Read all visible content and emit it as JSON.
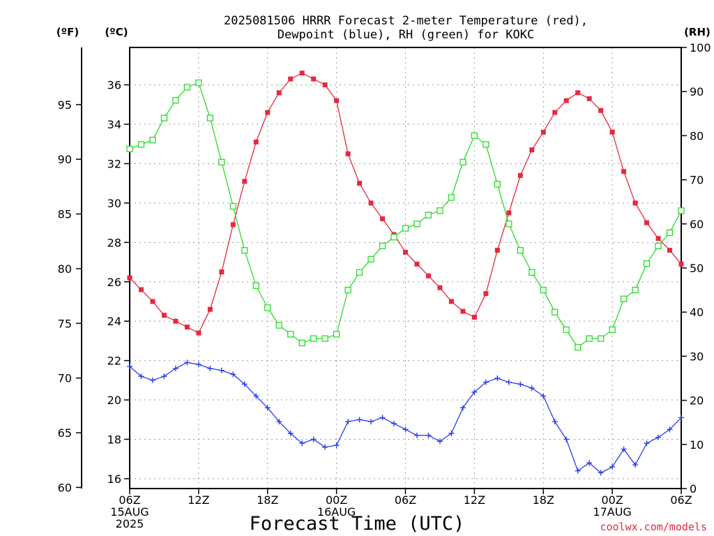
{
  "chart_data": {
    "type": "line",
    "title_lines": [
      "2025081506 HRRR Forecast 2-meter Temperature (red),",
      "Dewpoint (blue), RH (green) for KOKC"
    ],
    "xlabel": "Forecast Time (UTC)",
    "credit": "coolwx.com/models",
    "unit_labels": {
      "fahrenheit": "(ºF)",
      "celsius": "(ºC)",
      "rh": "(RH)"
    },
    "x_ticks": [
      {
        "hour": 0,
        "lines": [
          "06Z",
          "15AUG",
          "2025"
        ]
      },
      {
        "hour": 6,
        "lines": [
          "12Z"
        ]
      },
      {
        "hour": 12,
        "lines": [
          "18Z"
        ]
      },
      {
        "hour": 18,
        "lines": [
          "00Z",
          "16AUG"
        ]
      },
      {
        "hour": 24,
        "lines": [
          "06Z"
        ]
      },
      {
        "hour": 30,
        "lines": [
          "12Z"
        ]
      },
      {
        "hour": 36,
        "lines": [
          "18Z"
        ]
      },
      {
        "hour": 42,
        "lines": [
          "00Z",
          "17AUG"
        ]
      },
      {
        "hour": 48,
        "lines": [
          "06Z"
        ]
      }
    ],
    "xlim": [
      0,
      48
    ],
    "celsius_axis": {
      "ylim": [
        15.5,
        37.9
      ],
      "ticks": [
        16,
        18,
        20,
        22,
        24,
        26,
        28,
        30,
        32,
        34,
        36
      ]
    },
    "fahrenheit_axis": {
      "ticks": [
        60,
        65,
        70,
        75,
        80,
        85,
        90,
        95
      ]
    },
    "rh_axis": {
      "ylim": [
        0,
        100
      ],
      "ticks": [
        0,
        10,
        20,
        30,
        40,
        50,
        60,
        70,
        80,
        90,
        100
      ]
    },
    "grid": true,
    "series": [
      {
        "name": "Temperature (red)",
        "color": "#e8283c",
        "axis": "celsius",
        "marker": "filled-square",
        "values": [
          26.2,
          25.6,
          25.0,
          24.3,
          24.0,
          23.7,
          23.4,
          24.6,
          26.5,
          28.9,
          31.1,
          33.1,
          34.6,
          35.6,
          36.3,
          36.6,
          36.3,
          36.0,
          35.2,
          32.5,
          31.0,
          30.0,
          29.2,
          28.4,
          27.5,
          26.9,
          26.3,
          25.7,
          25.0,
          24.5,
          24.2,
          25.4,
          27.6,
          29.5,
          31.4,
          32.7,
          33.6,
          34.6,
          35.2,
          35.6,
          35.3,
          34.7,
          33.6,
          31.6,
          30.0,
          29.0,
          28.2,
          27.6,
          26.9
        ]
      },
      {
        "name": "Dewpoint (blue)",
        "color": "#2840e8",
        "axis": "celsius",
        "marker": "plus",
        "values": [
          21.7,
          21.2,
          21.0,
          21.2,
          21.6,
          21.9,
          21.8,
          21.6,
          21.5,
          21.3,
          20.8,
          20.2,
          19.6,
          18.9,
          18.3,
          17.8,
          18.0,
          17.6,
          17.7,
          18.9,
          19.0,
          18.9,
          19.1,
          18.8,
          18.5,
          18.2,
          18.2,
          17.9,
          18.3,
          19.6,
          20.4,
          20.9,
          21.1,
          20.9,
          20.8,
          20.6,
          20.2,
          18.9,
          18.0,
          16.4,
          16.8,
          16.3,
          16.6,
          17.5,
          16.7,
          17.8,
          18.1,
          18.5,
          19.1
        ]
      },
      {
        "name": "RH (green)",
        "color": "#28dc28",
        "axis": "rh",
        "marker": "open-square",
        "values": [
          77,
          78,
          79,
          84,
          88,
          91,
          92,
          84,
          74,
          64,
          54,
          46,
          41,
          37,
          35,
          33,
          34,
          34,
          35,
          45,
          49,
          52,
          55,
          57,
          59,
          60,
          62,
          63,
          66,
          74,
          80,
          78,
          69,
          60,
          54,
          49,
          45,
          40,
          36,
          32,
          34,
          34,
          36,
          43,
          45,
          51,
          55,
          58,
          63
        ]
      }
    ]
  }
}
